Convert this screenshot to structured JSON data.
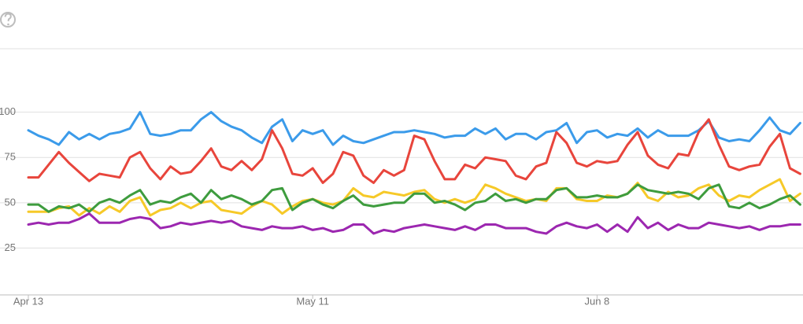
{
  "chart_data": {
    "type": "line",
    "categories": [
      "Apr 13",
      null,
      null,
      null,
      null,
      null,
      null,
      null,
      null,
      null,
      null,
      null,
      null,
      null,
      null,
      null,
      null,
      null,
      null,
      null,
      null,
      null,
      null,
      null,
      null,
      null,
      null,
      null,
      "May 11",
      null,
      null,
      null,
      null,
      null,
      null,
      null,
      null,
      null,
      null,
      null,
      null,
      null,
      null,
      null,
      null,
      null,
      null,
      null,
      null,
      null,
      null,
      null,
      null,
      null,
      null,
      null,
      "Jun 8",
      null,
      null,
      null,
      null,
      null,
      null,
      null,
      null,
      null,
      null,
      null,
      null,
      null,
      null,
      null,
      null,
      null,
      null,
      null,
      null
    ],
    "series": [
      {
        "color": "#3b9bea",
        "values": [
          90,
          87,
          85,
          82,
          89,
          85,
          88,
          85,
          88,
          89,
          91,
          100,
          88,
          87,
          88,
          90,
          90,
          96,
          100,
          95,
          92,
          90,
          86,
          83,
          92,
          96,
          84,
          90,
          88,
          90,
          82,
          87,
          84,
          83,
          85,
          87,
          89,
          89,
          90,
          89,
          88,
          86,
          87,
          87,
          91,
          88,
          91,
          85,
          88,
          88,
          85,
          89,
          90,
          94,
          83,
          89,
          90,
          86,
          88,
          87,
          91,
          86,
          90,
          87,
          87,
          87,
          90,
          95,
          86,
          84,
          85,
          84,
          90,
          97,
          90,
          88,
          94
        ]
      },
      {
        "color": "#e8453c",
        "values": [
          64,
          64,
          71,
          78,
          72,
          67,
          62,
          66,
          65,
          64,
          75,
          78,
          69,
          63,
          70,
          66,
          67,
          73,
          80,
          70,
          68,
          73,
          68,
          74,
          90,
          80,
          66,
          65,
          69,
          61,
          66,
          78,
          76,
          65,
          61,
          68,
          65,
          68,
          87,
          85,
          73,
          63,
          63,
          71,
          69,
          75,
          74,
          73,
          65,
          63,
          70,
          72,
          89,
          83,
          72,
          70,
          73,
          72,
          73,
          82,
          89,
          76,
          71,
          69,
          77,
          76,
          89,
          96,
          82,
          70,
          68,
          70,
          71,
          81,
          88,
          69,
          66
        ]
      },
      {
        "color": "#f6c928",
        "values": [
          45,
          45,
          45,
          47,
          48,
          43,
          47,
          44,
          48,
          45,
          51,
          53,
          43,
          46,
          47,
          50,
          47,
          50,
          51,
          46,
          45,
          44,
          48,
          51,
          49,
          44,
          48,
          51,
          52,
          50,
          49,
          51,
          58,
          54,
          53,
          56,
          55,
          54,
          56,
          57,
          52,
          50,
          52,
          50,
          52,
          60,
          58,
          55,
          53,
          51,
          52,
          51,
          58,
          58,
          52,
          51,
          51,
          54,
          53,
          55,
          61,
          53,
          51,
          56,
          53,
          54,
          58,
          60,
          54,
          51,
          54,
          53,
          57,
          60,
          63,
          51,
          55
        ]
      },
      {
        "color": "#3e9c3e",
        "values": [
          49,
          49,
          45,
          48,
          47,
          49,
          45,
          50,
          52,
          50,
          54,
          57,
          49,
          51,
          50,
          53,
          55,
          50,
          57,
          52,
          54,
          52,
          49,
          51,
          57,
          58,
          46,
          50,
          52,
          49,
          47,
          51,
          54,
          49,
          48,
          49,
          50,
          50,
          55,
          55,
          50,
          51,
          49,
          46,
          50,
          51,
          55,
          51,
          52,
          50,
          52,
          52,
          57,
          58,
          53,
          53,
          54,
          53,
          53,
          55,
          60,
          57,
          56,
          55,
          56,
          55,
          52,
          58,
          60,
          48,
          47,
          50,
          47,
          49,
          52,
          54,
          49
        ]
      },
      {
        "color": "#9c27b0",
        "values": [
          38,
          39,
          38,
          39,
          39,
          41,
          44,
          39,
          39,
          39,
          41,
          42,
          41,
          36,
          37,
          39,
          38,
          39,
          40,
          39,
          40,
          37,
          36,
          35,
          37,
          36,
          36,
          37,
          35,
          36,
          34,
          35,
          38,
          38,
          33,
          35,
          34,
          36,
          37,
          38,
          37,
          36,
          35,
          37,
          35,
          38,
          38,
          36,
          36,
          36,
          34,
          33,
          37,
          39,
          37,
          36,
          38,
          34,
          38,
          34,
          42,
          36,
          39,
          35,
          38,
          36,
          36,
          39,
          38,
          37,
          36,
          37,
          35,
          37,
          37,
          38,
          38
        ]
      }
    ],
    "ylim": [
      0,
      135
    ],
    "yticks": [
      25,
      50,
      75,
      100
    ],
    "grid": true
  }
}
